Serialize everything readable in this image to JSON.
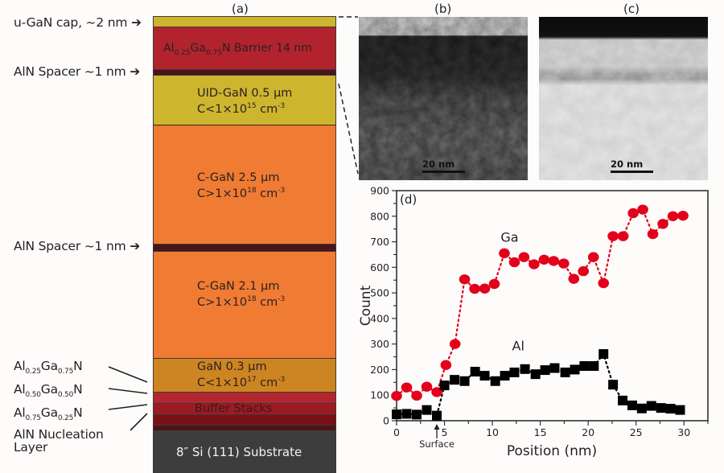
{
  "panels": {
    "a_label": "(a)",
    "b_label": "(b)",
    "c_label": "(c)",
    "d_label": "(d)"
  },
  "layer_stack": {
    "side_labels": {
      "cap": "u-GaN cap, ~2 nm",
      "spacer_top": "AlN Spacer ~1 nm",
      "spacer_mid": "AlN Spacer ~1 nm",
      "buffer_1_pre": "Al",
      "buffer_1_sub1": "0.25",
      "buffer_1_mid": "Ga",
      "buffer_1_sub2": "0.75",
      "buffer_1_post": "N",
      "buffer_2_pre": "Al",
      "buffer_2_sub1": "0.50",
      "buffer_2_mid": "Ga",
      "buffer_2_sub2": "0.50",
      "buffer_2_post": "N",
      "buffer_3_pre": "Al",
      "buffer_3_sub1": "0.75",
      "buffer_3_mid": "Ga",
      "buffer_3_sub2": "0.25",
      "buffer_3_post": "N",
      "nucleation_line1": "AlN Nucleation",
      "nucleation_line2": "Layer"
    },
    "layers": {
      "barrier": {
        "pre": "Al",
        "sub1": "0.25",
        "mid": "Ga",
        "sub2": "0.75",
        "post": "N Barrier 14 nm",
        "color": "#b2232e"
      },
      "cap": {
        "color": "#cdb52e"
      },
      "spacer": {
        "color": "#4a1418"
      },
      "uid_gan": {
        "line1": "UID-GaN 0.5 µm",
        "line2_pre": "C<1×10",
        "line2_exp": "15",
        "line2_unit": " cm",
        "line2_unit_exp": "-3",
        "color": "#cdb52e"
      },
      "cgan_1": {
        "line1": "C-GaN 2.5 µm",
        "line2_pre": "C>1×10",
        "line2_exp": "18",
        "line2_unit": " cm",
        "line2_unit_exp": "-3",
        "color": "#f07b33"
      },
      "cgan_2": {
        "line1": "C-GaN 2.1 µm",
        "line2_pre": "C>1×10",
        "line2_exp": "18",
        "line2_unit": " cm",
        "line2_unit_exp": "-3",
        "color": "#f07b33"
      },
      "gan": {
        "line1": "GaN 0.3 µm",
        "line2_pre": "C<1×10",
        "line2_exp": "17",
        "line2_unit": " cm",
        "line2_unit_exp": "-3",
        "color": "#cd8521"
      },
      "buffer": {
        "label": "Buffer Stacks",
        "colors": [
          "#b3252f",
          "#9a1b24",
          "#7a0f16",
          "#4a1418"
        ]
      },
      "substrate": {
        "label": "8″ Si (111) Substrate",
        "color": "#3d3d3d"
      }
    }
  },
  "tem_images": {
    "b": {
      "scalebar_label": "20 nm"
    },
    "c": {
      "scalebar_label": "20 nm"
    }
  },
  "chart_data": {
    "type": "scatter",
    "title": "",
    "xlabel": "Position (nm)",
    "ylabel": "Count",
    "xlim": [
      0,
      32.5
    ],
    "ylim": [
      0,
      900
    ],
    "xticks": [
      0,
      5,
      10,
      15,
      20,
      25,
      30
    ],
    "yticks": [
      0,
      100,
      200,
      300,
      400,
      500,
      600,
      700,
      800,
      900
    ],
    "grid": false,
    "annotation": {
      "text": "Surface",
      "x": 4.2
    },
    "series": [
      {
        "name": "Ga",
        "marker": "circle",
        "color": "#e3001b",
        "line_style": "dotted",
        "x": [
          0,
          1.05,
          2.1,
          3.15,
          4.2,
          5.15,
          6.1,
          7.1,
          8.15,
          9.2,
          10.2,
          11.25,
          12.3,
          13.3,
          14.35,
          15.4,
          16.4,
          17.45,
          18.5,
          19.5,
          20.55,
          21.6,
          22.6,
          23.65,
          24.7,
          25.7,
          26.75,
          27.8,
          28.85,
          29.9
        ],
        "y": [
          97,
          130,
          98,
          133,
          112,
          218,
          300,
          553,
          516,
          517,
          535,
          655,
          620,
          640,
          612,
          630,
          625,
          615,
          555,
          585,
          640,
          538,
          722,
          722,
          812,
          826,
          730,
          770,
          800,
          802
        ]
      },
      {
        "name": "Al",
        "marker": "square",
        "color": "#000000",
        "line_style": "dotted",
        "x": [
          0,
          1.05,
          2.1,
          3.15,
          4.2,
          5.0,
          6.05,
          7.1,
          8.2,
          9.2,
          10.3,
          11.3,
          12.3,
          13.4,
          14.5,
          15.5,
          16.5,
          17.6,
          18.6,
          19.6,
          20.6,
          21.6,
          22.6,
          23.6,
          24.6,
          25.6,
          26.6,
          27.6,
          28.6,
          29.6
        ],
        "y": [
          25,
          27,
          24,
          42,
          20,
          138,
          160,
          155,
          192,
          176,
          155,
          176,
          189,
          202,
          182,
          198,
          206,
          189,
          200,
          214,
          214,
          261,
          141,
          79,
          60,
          48,
          58,
          50,
          47,
          42
        ]
      }
    ],
    "series_labels": [
      {
        "text": "Ga",
        "x": 11.8,
        "y": 700
      },
      {
        "text": "Al",
        "x": 12.7,
        "y": 275
      }
    ]
  }
}
